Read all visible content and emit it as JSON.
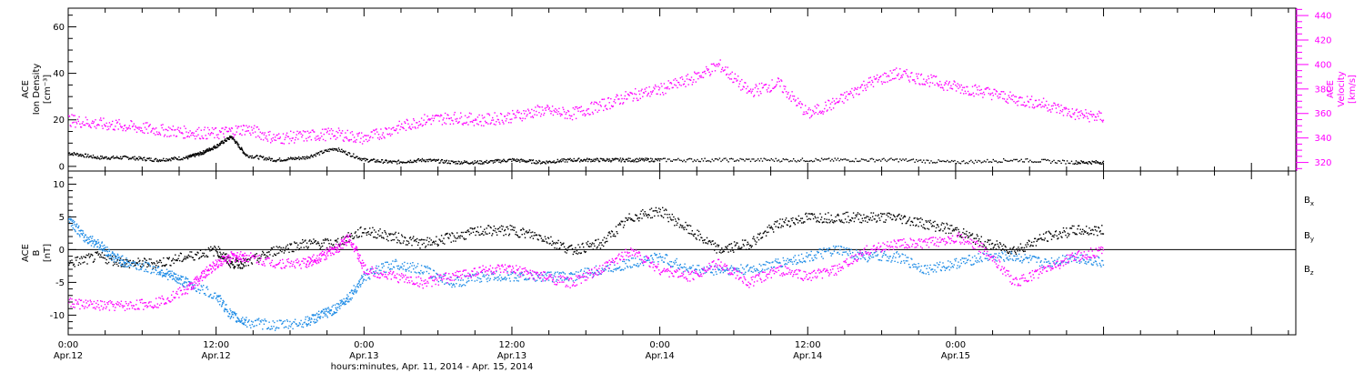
{
  "colors": {
    "axis": "#000000",
    "magenta": "#ff00ff",
    "blue": "#1e8ce6",
    "black": "#000000"
  },
  "chart_data": [
    {
      "type": "scatter",
      "panel": "top",
      "ylabel_lines": [
        "ACE",
        "Ion Density",
        "[cm⁻³]"
      ],
      "ylabel2_lines": [
        "ACE",
        "Velocity",
        "[km/s]"
      ],
      "ylim": [
        -2,
        68
      ],
      "ylim2": [
        313,
        446
      ],
      "yticks": [
        0,
        20,
        40,
        60
      ],
      "yticks2": [
        320,
        340,
        360,
        380,
        400,
        420,
        440
      ],
      "series": [
        {
          "axis": "left",
          "color": "#000000",
          "x": [
            0,
            0.1,
            0.2,
            0.3,
            0.4,
            0.45,
            0.5,
            0.55,
            0.6,
            0.7,
            0.8,
            0.9,
            1.0,
            1.1,
            1.2,
            1.3,
            1.4,
            1.5,
            1.6,
            1.7,
            1.8,
            1.9,
            2.0,
            2.2,
            2.4,
            2.6,
            2.8,
            3.0,
            3.2,
            3.4,
            3.5
          ],
          "y": [
            6,
            4,
            4,
            3,
            4,
            6,
            9,
            13,
            5,
            3,
            4,
            8,
            3,
            2,
            3,
            2,
            2,
            3,
            2,
            3,
            3,
            3,
            3,
            3,
            3,
            3,
            3,
            2,
            3,
            2,
            2
          ]
        },
        {
          "axis": "right",
          "color": "#ff00ff",
          "x": [
            0,
            0.1,
            0.2,
            0.3,
            0.4,
            0.5,
            0.6,
            0.7,
            0.8,
            0.9,
            1.0,
            1.1,
            1.2,
            1.3,
            1.4,
            1.5,
            1.6,
            1.7,
            1.8,
            1.9,
            2.0,
            2.1,
            2.2,
            2.3,
            2.4,
            2.5,
            2.6,
            2.7,
            2.8,
            2.9,
            3.0,
            3.1,
            3.2,
            3.3,
            3.4,
            3.5
          ],
          "y": [
            355,
            352,
            350,
            347,
            345,
            344,
            348,
            340,
            342,
            344,
            340,
            348,
            355,
            357,
            355,
            358,
            363,
            360,
            367,
            375,
            380,
            388,
            400,
            378,
            385,
            360,
            370,
            385,
            393,
            388,
            382,
            378,
            372,
            368,
            360,
            357
          ]
        }
      ]
    },
    {
      "type": "scatter",
      "panel": "bottom",
      "ylabel_lines": [
        "ACE",
        "B",
        "[nT]"
      ],
      "ylim": [
        -13,
        12
      ],
      "yticks": [
        -10,
        -5,
        0,
        5,
        10
      ],
      "hline": 0,
      "xlabel": "hours:minutes, Apr. 11, 2014 - Apr. 15, 2014",
      "x_tick_labels": [
        [
          "0:00",
          "Apr.12"
        ],
        [
          "12:00",
          "Apr.12"
        ],
        [
          "0:00",
          "Apr.13"
        ],
        [
          "12:00",
          "Apr.13"
        ],
        [
          "0:00",
          "Apr.14"
        ],
        [
          "12:00",
          "Apr.14"
        ],
        [
          "0:00",
          "Apr.15"
        ]
      ],
      "x_tick_days": [
        0,
        0.5,
        1,
        1.5,
        2,
        2.5,
        3
      ],
      "xlim": [
        0,
        4.15
      ],
      "legend": [
        {
          "base": "B",
          "sub": "x",
          "color": "#000000"
        },
        {
          "base": "B",
          "sub": "y",
          "color": "#1e8ce6"
        },
        {
          "base": "B",
          "sub": "z",
          "color": "#ff00ff"
        }
      ],
      "series": [
        {
          "name": "Bx",
          "color": "#000000",
          "x": [
            0,
            0.1,
            0.2,
            0.3,
            0.4,
            0.5,
            0.55,
            0.6,
            0.7,
            0.8,
            0.9,
            1.0,
            1.1,
            1.2,
            1.3,
            1.4,
            1.5,
            1.6,
            1.7,
            1.8,
            1.9,
            2.0,
            2.1,
            2.2,
            2.3,
            2.4,
            2.5,
            2.6,
            2.7,
            2.8,
            2.9,
            3.0,
            3.1,
            3.2,
            3.3,
            3.4,
            3.5
          ],
          "y": [
            -2,
            -1,
            -2,
            -2,
            -1,
            0,
            -2,
            -2,
            0,
            1,
            1,
            3,
            2,
            1,
            2,
            3,
            3,
            2,
            0,
            1,
            5,
            6,
            3,
            0,
            1,
            4,
            5,
            5,
            5,
            5,
            4,
            3,
            1,
            0,
            2,
            3,
            3
          ]
        },
        {
          "name": "By",
          "color": "#1e8ce6",
          "x": [
            0,
            0.05,
            0.1,
            0.15,
            0.2,
            0.3,
            0.35,
            0.4,
            0.5,
            0.55,
            0.6,
            0.7,
            0.8,
            0.85,
            0.9,
            0.95,
            1.0,
            1.1,
            1.2,
            1.3,
            1.4,
            1.5,
            1.6,
            1.7,
            1.8,
            1.9,
            2.0,
            2.1,
            2.2,
            2.3,
            2.4,
            2.5,
            2.6,
            2.7,
            2.8,
            2.9,
            3.0,
            3.1,
            3.2,
            3.3,
            3.4,
            3.5
          ],
          "y": [
            5,
            2,
            1,
            -1,
            -2,
            -3,
            -4,
            -5,
            -7,
            -10,
            -11,
            -11.5,
            -11,
            -10,
            -9,
            -7,
            -4,
            -2,
            -3,
            -5,
            -4,
            -4,
            -4,
            -4,
            -3,
            -2,
            -1,
            -3,
            -3,
            -3,
            -2,
            -1,
            0,
            -1,
            -1,
            -3,
            -2,
            -1,
            -1,
            -2,
            -1,
            -2
          ]
        },
        {
          "name": "Bz",
          "color": "#ff00ff",
          "x": [
            0,
            0.1,
            0.2,
            0.3,
            0.4,
            0.45,
            0.5,
            0.55,
            0.6,
            0.7,
            0.8,
            0.85,
            0.9,
            0.95,
            1.0,
            1.1,
            1.2,
            1.3,
            1.4,
            1.5,
            1.6,
            1.7,
            1.8,
            1.9,
            2.0,
            2.1,
            2.2,
            2.3,
            2.4,
            2.5,
            2.6,
            2.7,
            2.8,
            2.9,
            3.0,
            3.1,
            3.2,
            3.3,
            3.4,
            3.5
          ],
          "y": [
            -8,
            -8.5,
            -8.5,
            -8,
            -6,
            -4,
            -2,
            -1,
            -1,
            -2,
            -2,
            -1,
            0,
            2,
            -3,
            -4,
            -5,
            -4,
            -3,
            -3,
            -4,
            -5,
            -3,
            0,
            -3,
            -4,
            -2,
            -5,
            -3,
            -4,
            -3,
            0,
            1,
            1,
            2,
            0,
            -5,
            -3,
            -1,
            0
          ]
        }
      ]
    }
  ]
}
